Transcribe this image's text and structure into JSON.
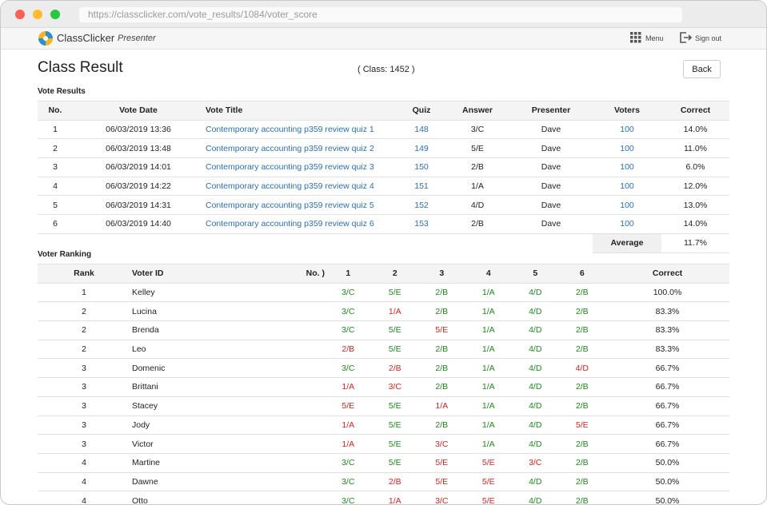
{
  "browser": {
    "url": "https://classclicker.com/vote_results/1084/voter_score"
  },
  "header": {
    "brand": "ClassClicker",
    "brand_sub": "Presenter",
    "menu": "Menu",
    "sign_out": "Sign out"
  },
  "page": {
    "title": "Class Result",
    "class_label": "( Class: 1452 )",
    "back": "Back"
  },
  "vote_results": {
    "title": "Vote Results",
    "columns": [
      "No.",
      "Vote Date",
      "Vote Title",
      "Quiz",
      "Answer",
      "Presenter",
      "Voters",
      "Correct"
    ],
    "rows": [
      [
        "1",
        "06/03/2019 13:36",
        "Contemporary accounting p359 review quiz 1",
        "148",
        "3/C",
        "Dave",
        "100",
        "14.0%"
      ],
      [
        "2",
        "06/03/2019 13:48",
        "Contemporary accounting p359 review quiz 2",
        "149",
        "5/E",
        "Dave",
        "100",
        "11.0%"
      ],
      [
        "3",
        "06/03/2019 14:01",
        "Contemporary accounting p359 review quiz 3",
        "150",
        "2/B",
        "Dave",
        "100",
        "6.0%"
      ],
      [
        "4",
        "06/03/2019 14:22",
        "Contemporary accounting p359 review quiz 4",
        "151",
        "1/A",
        "Dave",
        "100",
        "12.0%"
      ],
      [
        "5",
        "06/03/2019 14:31",
        "Contemporary accounting p359 review quiz 5",
        "152",
        "4/D",
        "Dave",
        "100",
        "13.0%"
      ],
      [
        "6",
        "06/03/2019 14:40",
        "Contemporary accounting p359 review quiz 6",
        "153",
        "2/B",
        "Dave",
        "100",
        "14.0%"
      ]
    ],
    "average_label": "Average",
    "average": "11.7%"
  },
  "voter_ranking": {
    "title": "Voter Ranking",
    "columns": [
      "Rank",
      "Voter ID",
      "No. )",
      "1",
      "2",
      "3",
      "4",
      "5",
      "6",
      "Correct"
    ],
    "rows": [
      [
        "1",
        "Kelley",
        "3/C",
        "5/E",
        "2/B",
        "1/A",
        "4/D",
        "2/B",
        "100.0%"
      ],
      [
        "2",
        "Lucina",
        "3/C",
        "1/A",
        "2/B",
        "1/A",
        "4/D",
        "2/B",
        "83.3%"
      ],
      [
        "2",
        "Brenda",
        "3/C",
        "5/E",
        "5/E",
        "1/A",
        "4/D",
        "2/B",
        "83.3%"
      ],
      [
        "2",
        "Leo",
        "2/B",
        "5/E",
        "2/B",
        "1/A",
        "4/D",
        "2/B",
        "83.3%"
      ],
      [
        "3",
        "Domenic",
        "3/C",
        "2/B",
        "2/B",
        "1/A",
        "4/D",
        "4/D",
        "66.7%"
      ],
      [
        "3",
        "Brittani",
        "1/A",
        "3/C",
        "2/B",
        "1/A",
        "4/D",
        "2/B",
        "66.7%"
      ],
      [
        "3",
        "Stacey",
        "5/E",
        "5/E",
        "1/A",
        "1/A",
        "4/D",
        "2/B",
        "66.7%"
      ],
      [
        "3",
        "Jody",
        "1/A",
        "5/E",
        "2/B",
        "1/A",
        "4/D",
        "5/E",
        "66.7%"
      ],
      [
        "3",
        "Victor",
        "1/A",
        "5/E",
        "3/C",
        "1/A",
        "4/D",
        "2/B",
        "66.7%"
      ],
      [
        "4",
        "Martine",
        "3/C",
        "5/E",
        "5/E",
        "5/E",
        "3/C",
        "2/B",
        "50.0%"
      ],
      [
        "4",
        "Dawne",
        "3/C",
        "2/B",
        "5/E",
        "5/E",
        "4/D",
        "2/B",
        "50.0%"
      ],
      [
        "4",
        "Otto",
        "3/C",
        "1/A",
        "3/C",
        "5/E",
        "4/D",
        "2/B",
        "50.0%"
      ]
    ]
  }
}
